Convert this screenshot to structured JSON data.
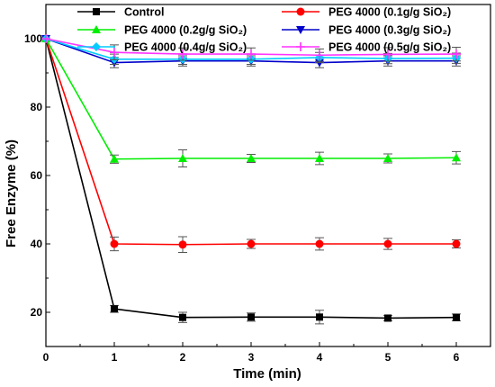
{
  "chart_data": {
    "type": "line",
    "title": "",
    "xlabel": "Time (min)",
    "ylabel": "Free Enzyme (%)",
    "xlim": [
      0,
      6.5
    ],
    "ylim": [
      10,
      110
    ],
    "x_ticks": [
      "0",
      "1",
      "2",
      "3",
      "4",
      "5",
      "6"
    ],
    "y_ticks": [
      "20",
      "40",
      "60",
      "80",
      "100"
    ],
    "x": [
      0,
      1,
      2,
      3,
      4,
      5,
      6
    ],
    "grid": false,
    "legend_placement": "top, inside plot (two columns)",
    "series": [
      {
        "name": "Control",
        "color": "#000000",
        "marker": "square",
        "values": [
          100,
          21,
          18.5,
          18.6,
          18.6,
          18.3,
          18.5
        ],
        "errors": [
          0,
          1,
          1.5,
          1.2,
          2,
          0.8,
          1
        ]
      },
      {
        "name": "PEG 4000 (0.1g/g SiO₂)",
        "color": "#ff0000",
        "marker": "circle",
        "values": [
          100,
          40,
          39.8,
          40,
          40,
          40,
          40
        ],
        "errors": [
          0,
          2,
          2.3,
          1.3,
          1.8,
          1.6,
          1.2
        ]
      },
      {
        "name": "PEG 4000 (0.2g/g SiO₂)",
        "color": "#00ee00",
        "marker": "triangle-up",
        "values": [
          100,
          64.8,
          65,
          65,
          65,
          65,
          65.2
        ],
        "errors": [
          0,
          1.2,
          2.5,
          1.2,
          1.8,
          1.3,
          1.8
        ]
      },
      {
        "name": "PEG 4000 (0.3g/g SiO₂)",
        "color": "#0000cc",
        "marker": "triangle-down",
        "values": [
          100,
          93,
          93.5,
          93.5,
          93,
          93.5,
          93.5
        ],
        "errors": [
          0,
          1.5,
          1.5,
          1.5,
          1.5,
          1.5,
          1.5
        ]
      },
      {
        "name": "PEG 4000 (0.4g/g SiO₂)",
        "color": "#00ccff",
        "marker": "diamond",
        "values": [
          100,
          94,
          94,
          94,
          94.5,
          94.2,
          94.3
        ],
        "errors": [
          0,
          1.5,
          1.5,
          1.5,
          1.5,
          1.5,
          1.5
        ]
      },
      {
        "name": "PEG 4000 (0.5g/g SiO₂)",
        "color": "#ff33ff",
        "marker": "plus",
        "values": [
          100,
          96,
          95.5,
          95.5,
          95.2,
          95.4,
          95.5
        ],
        "errors": [
          0,
          2.2,
          1.8,
          1.8,
          1.8,
          2,
          2
        ]
      }
    ]
  }
}
